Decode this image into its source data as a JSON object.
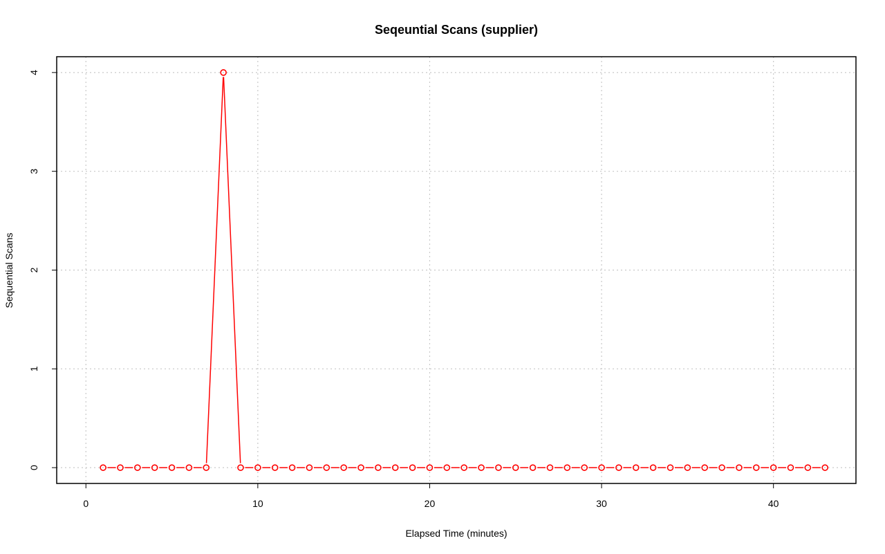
{
  "chart_data": {
    "type": "line",
    "title": "Seqeuntial Scans (supplier)",
    "xlabel": "Elapsed Time (minutes)",
    "ylabel": "Sequential Scans",
    "xlim": [
      -1.7,
      44.8
    ],
    "ylim": [
      -0.16,
      4.16
    ],
    "x_ticks": [
      0,
      10,
      20,
      30,
      40
    ],
    "y_ticks": [
      0,
      1,
      2,
      3,
      4
    ],
    "grid": true,
    "legend": "none",
    "series": [
      {
        "color": "#ff0000",
        "marker": "open-circle",
        "x": [
          1,
          2,
          3,
          4,
          5,
          6,
          7,
          8,
          9,
          10,
          11,
          12,
          13,
          14,
          15,
          16,
          17,
          18,
          19,
          20,
          21,
          22,
          23,
          24,
          25,
          26,
          27,
          28,
          29,
          30,
          31,
          32,
          33,
          34,
          35,
          36,
          37,
          38,
          39,
          40,
          41,
          42,
          43
        ],
        "values": [
          0,
          0,
          0,
          0,
          0,
          0,
          0,
          4,
          0,
          0,
          0,
          0,
          0,
          0,
          0,
          0,
          0,
          0,
          0,
          0,
          0,
          0,
          0,
          0,
          0,
          0,
          0,
          0,
          0,
          0,
          0,
          0,
          0,
          0,
          0,
          0,
          0,
          0,
          0,
          0,
          0,
          0,
          0
        ]
      }
    ]
  }
}
